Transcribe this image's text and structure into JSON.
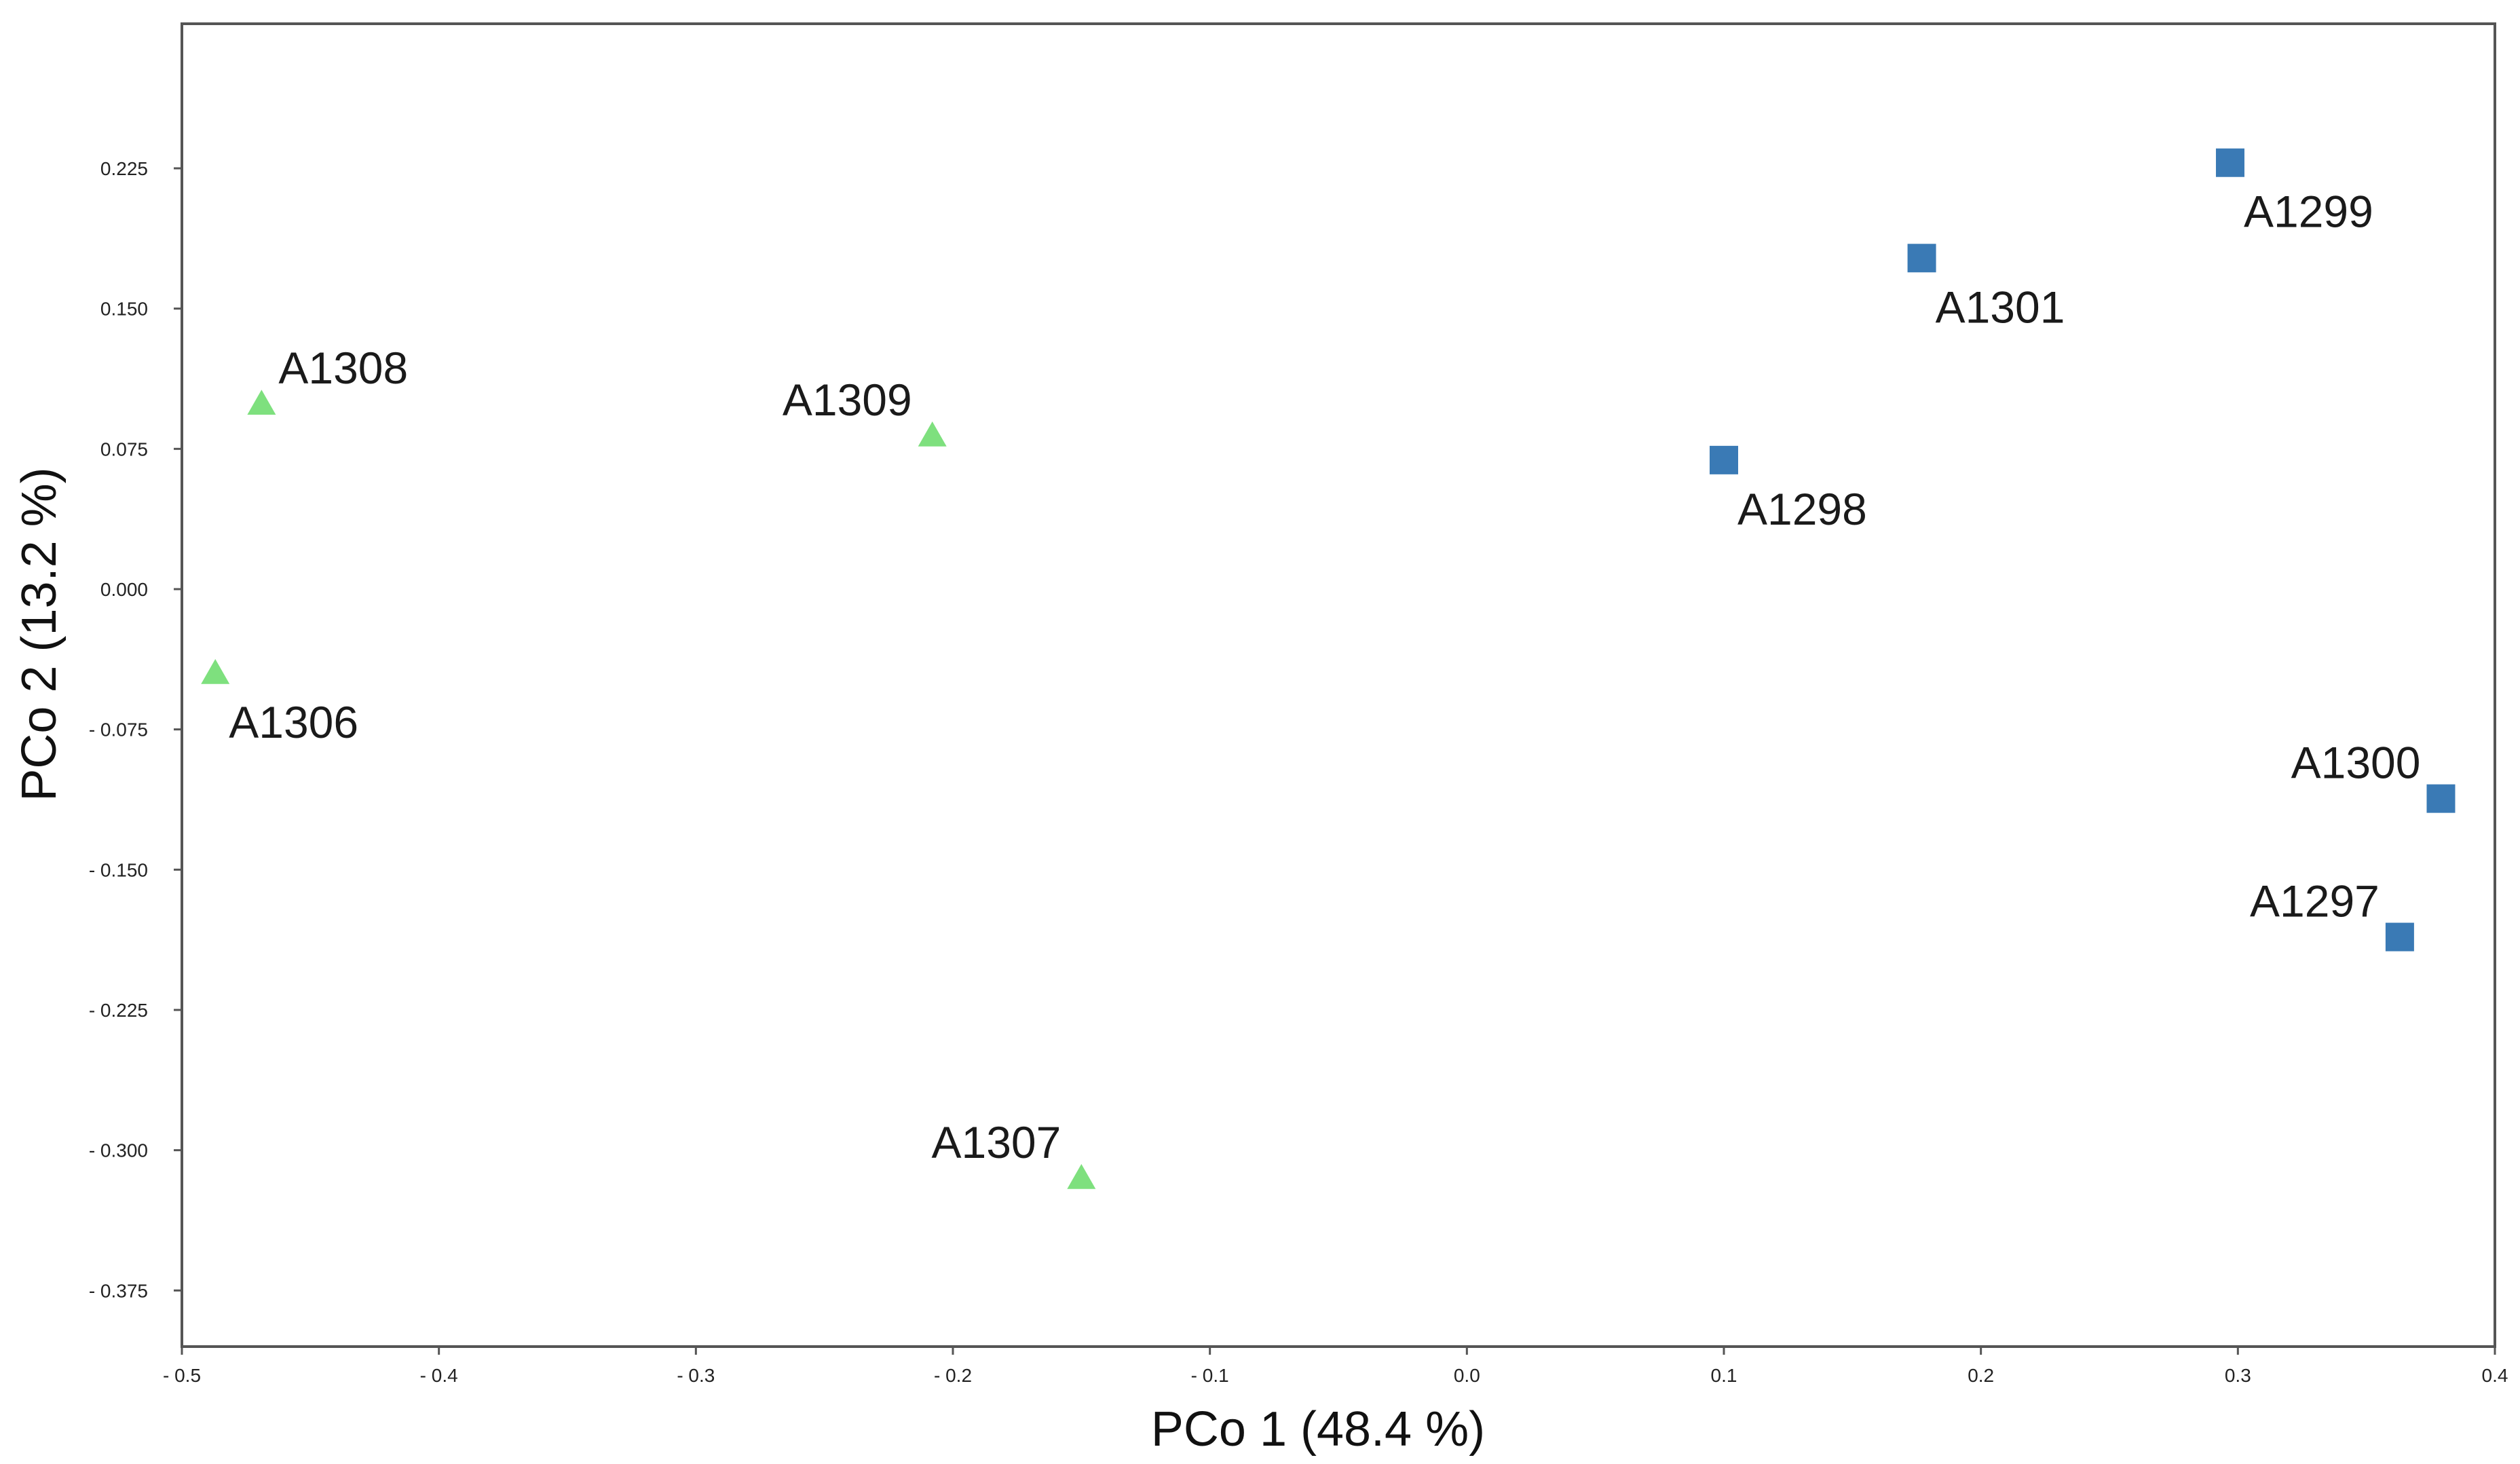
{
  "chart_data": {
    "type": "scatter",
    "title": "",
    "xlabel": "PCo 1 (48.4 %)",
    "ylabel": "PCo 2 (13.2 %)",
    "xlim": [
      -0.5,
      0.4
    ],
    "ylim": [
      -0.4,
      0.3
    ],
    "grid": false,
    "legend": "none",
    "x_ticks": [
      "- 0.5",
      "- 0.4",
      "- 0.3",
      "- 0.2",
      "- 0.1",
      "0.0",
      "0.1",
      "0.2",
      "0.3",
      "0.4"
    ],
    "x_tick_values": [
      -0.5,
      -0.4,
      -0.3,
      -0.2,
      -0.1,
      0.0,
      0.1,
      0.2,
      0.3,
      0.4
    ],
    "y_ticks": [
      "0.225",
      "0.150",
      "0.075",
      "0.000",
      "- 0.075",
      "- 0.150",
      "- 0.225",
      "- 0.300",
      "- 0.375"
    ],
    "y_tick_values": [
      0.225,
      0.15,
      0.075,
      0.0,
      -0.075,
      -0.15,
      -0.225,
      -0.3,
      -0.375
    ],
    "series": [
      {
        "marker": "square",
        "color": "#3a7ab5",
        "points": [
          {
            "label": "A1299",
            "x": 0.297,
            "y": 0.228,
            "label_side": "below-right"
          },
          {
            "label": "A1301",
            "x": 0.177,
            "y": 0.177,
            "label_side": "below-right"
          },
          {
            "label": "A1298",
            "x": 0.1,
            "y": 0.069,
            "label_side": "below-right"
          },
          {
            "label": "A1300",
            "x": 0.379,
            "y": -0.112,
            "label_side": "above-left"
          },
          {
            "label": "A1297",
            "x": 0.363,
            "y": -0.186,
            "label_side": "above-left"
          }
        ]
      },
      {
        "marker": "triangle",
        "color": "#7ee07e",
        "points": [
          {
            "label": "A1308",
            "x": -0.469,
            "y": 0.099,
            "label_side": "above-right"
          },
          {
            "label": "A1309",
            "x": -0.208,
            "y": 0.082,
            "label_side": "above-left"
          },
          {
            "label": "A1306",
            "x": -0.487,
            "y": -0.045,
            "label_side": "below-right"
          },
          {
            "label": "A1307",
            "x": -0.15,
            "y": -0.315,
            "label_side": "above-left"
          }
        ]
      }
    ]
  }
}
